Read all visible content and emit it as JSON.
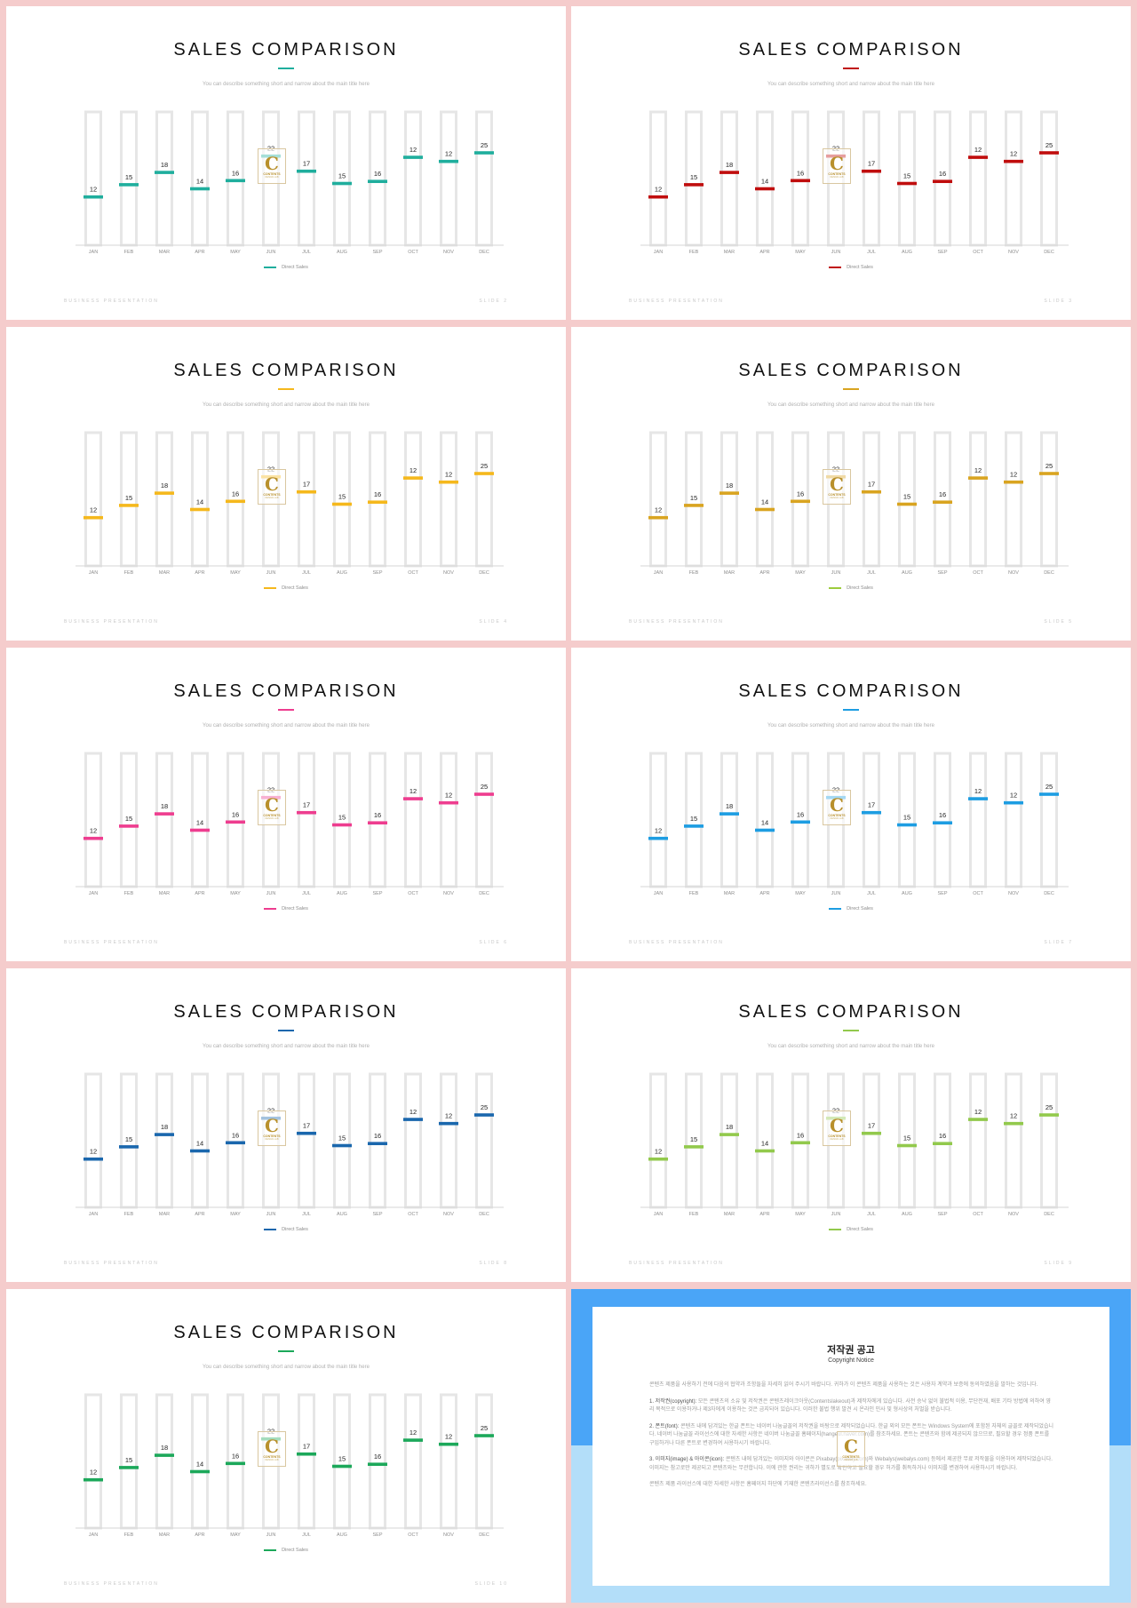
{
  "slide_template": {
    "title": "SALES COMPARISON",
    "subtitle": "You can describe something short and narrow about the main title here",
    "legend_label": "Direct Sales",
    "footer_left": "BUSINESS PRESENTATION",
    "logo": {
      "letter": "C",
      "text": "CONTENTS",
      "sub": "DESIGN LAB"
    }
  },
  "slides": [
    {
      "slide_label": "SLIDE 2",
      "accent": "#1fae9d",
      "legend_color": "#1fae9d"
    },
    {
      "slide_label": "SLIDE 3",
      "accent": "#c00d0d",
      "legend_color": "#c00d0d"
    },
    {
      "slide_label": "SLIDE 4",
      "accent": "#f5b81c",
      "legend_color": "#f5b81c"
    },
    {
      "slide_label": "SLIDE 5",
      "accent": "#d9a420",
      "legend_color": "#9ccc3c"
    },
    {
      "slide_label": "SLIDE 6",
      "accent": "#ee3d8f",
      "legend_color": "#ee3d8f"
    },
    {
      "slide_label": "SLIDE 7",
      "accent": "#1d9de2",
      "legend_color": "#1d9de2"
    },
    {
      "slide_label": "SLIDE 8",
      "accent": "#1a67ad",
      "legend_color": "#1a67ad"
    },
    {
      "slide_label": "SLIDE 9",
      "accent": "#92c94c",
      "legend_color": "#92c94c"
    },
    {
      "slide_label": "SLIDE 10",
      "accent": "#1ca85a",
      "legend_color": "#1ca85a"
    }
  ],
  "chart_data": {
    "type": "bar",
    "categories": [
      "JAN",
      "FEB",
      "MAR",
      "APR",
      "MAY",
      "JUN",
      "JUL",
      "AUG",
      "SEP",
      "OCT",
      "NOV",
      "DEC"
    ],
    "series": [
      {
        "name": "Direct Sales",
        "values": [
          12,
          15,
          18,
          14,
          16,
          22,
          17,
          15,
          16,
          12,
          12,
          25
        ]
      }
    ],
    "marker_levels": [
      10.5,
      13.5,
      16.5,
      12.5,
      14.5,
      20.5,
      16.8,
      13.8,
      14.3,
      20.2,
      19.2,
      21.3
    ],
    "ylim": [
      0,
      30
    ],
    "grid": false,
    "legend_position": "bottom"
  },
  "copyright": {
    "title": "저작권 공고",
    "subtitle": "Copyright Notice",
    "intro": "콘텐츠 제품을 사용하기 전에 다음의 협약과 조항들을 자세히 읽어 주시기 바랍니다. 귀하가 이 콘텐츠 제품을 사용하는 것은 사용자 계약과 보증에 동의하였음을 말하는 것입니다.",
    "p1_title": "1. 저작권(copyright):",
    "p1": "모든 콘텐츠의 소유 및 저작권은 콘텐츠레이크아웃(Contentslakeout)과 제작자에게 있습니다. 사전 승낙 없이 불법적 이용, 무단전재, 배포 기타 방법에 의하여 영리 목적으로 이용하거나 제3자에게 이용하는 것은 금지되어 있습니다. 이러한 불법 행위 발견 시 온라인 민사 및 형사상의 처벌을 받습니다.",
    "p2_title": "2. 폰트(font):",
    "p2": "콘텐츠 내에 담겨있는 한글 폰트는 네이버 나눔글꼴의 저작권을 바탕으로 제작되었습니다. 한글 외의 모든 폰트는 Windows System에 포함된 자체의 글꼴로 제작되었습니다. 네이버 나눔글꼴 라이선스에 대한 자세한 사항은 네이버 나눔글꼴 홈페이지(hangeul.naver.com)를 참조하세요. 폰트는 콘텐츠와 함께 제공되지 않으므로, 필요할 경우 정품 폰트를 구입하거나 다른 폰트로 변경하여 사용하시기 바랍니다.",
    "p3_title": "3. 이미지(image) & 아이콘(icon):",
    "p3": "콘텐츠 내에 담겨있는 이미지와 아이콘은 Pixabay(pixabay.com)와 Webalys(webalys.com) 등에서 제공한 무료 저작물을 이용하여 제작되었습니다. 이미지는 참고로만 제공되고 콘텐츠와는 무관합니다. 이에 관한 권리는 귀하가 별도로 확인하고 필요할 경우 허가를 취득하거나 이미지를 변경하여 사용하시기 바랍니다.",
    "closing": "콘텐츠 제품 라이선스에 대한 자세한 사항은 홈페이지 하단에 기재한 콘텐츠라이선스를 참조하세요."
  }
}
